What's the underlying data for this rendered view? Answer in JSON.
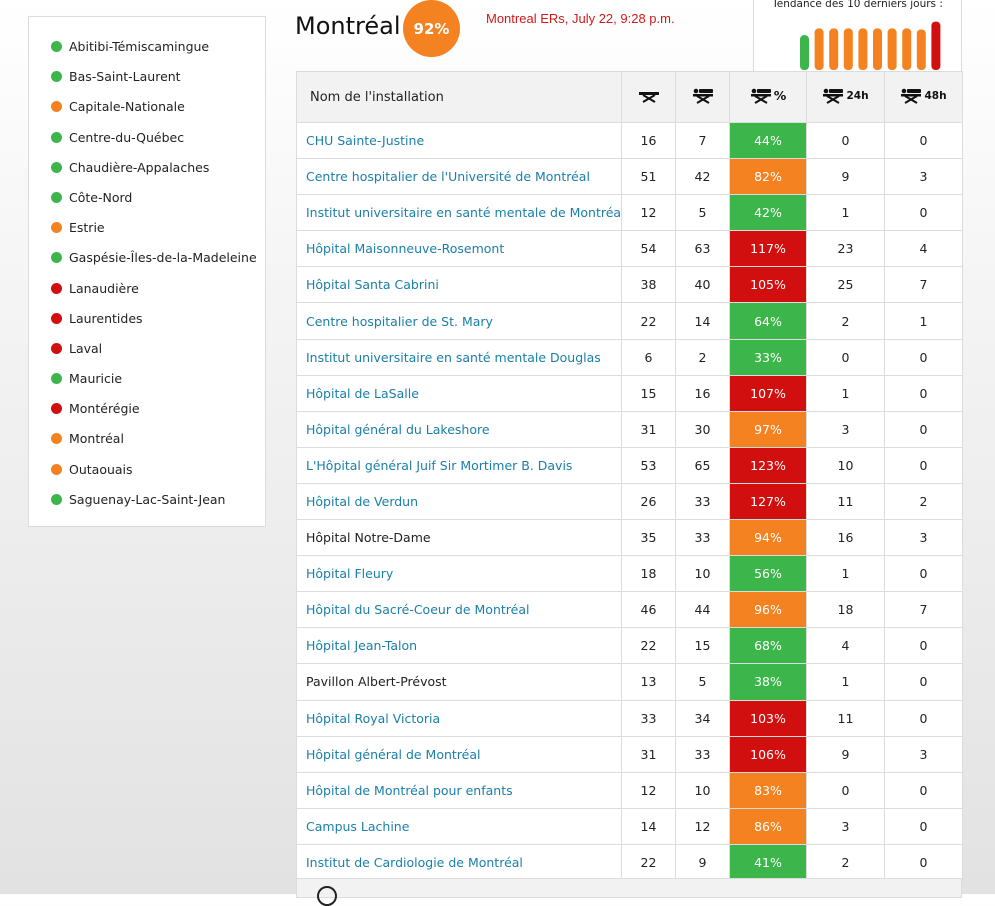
{
  "colors": {
    "green": "#3cb54a",
    "orange": "#f58220",
    "red": "#d10f0f"
  },
  "sidebar": {
    "regions": [
      {
        "label": "Abitibi-Témiscamingue",
        "status": "green"
      },
      {
        "label": "Bas-Saint-Laurent",
        "status": "green"
      },
      {
        "label": "Capitale-Nationale",
        "status": "orange"
      },
      {
        "label": "Centre-du-Québec",
        "status": "green"
      },
      {
        "label": "Chaudière-Appalaches",
        "status": "green"
      },
      {
        "label": "Côte-Nord",
        "status": "green"
      },
      {
        "label": "Estrie",
        "status": "orange"
      },
      {
        "label": "Gaspésie-Îles-de-la-Madeleine",
        "status": "green"
      },
      {
        "label": "Lanaudière",
        "status": "red"
      },
      {
        "label": "Laurentides",
        "status": "red"
      },
      {
        "label": "Laval",
        "status": "red"
      },
      {
        "label": "Mauricie",
        "status": "green"
      },
      {
        "label": "Montérégie",
        "status": "red"
      },
      {
        "label": "Montréal",
        "status": "orange"
      },
      {
        "label": "Outaouais",
        "status": "orange"
      },
      {
        "label": "Saguenay-Lac-Saint-Jean",
        "status": "green"
      }
    ]
  },
  "header": {
    "title": "Montréal",
    "score": "92%",
    "caption": "Montreal ERs, July 22, 9:28 p.m."
  },
  "trend": {
    "title": "Tendance des 10 derniers jours :",
    "bars": [
      {
        "value": 0.67,
        "status": "green"
      },
      {
        "value": 0.8,
        "status": "orange"
      },
      {
        "value": 0.8,
        "status": "orange"
      },
      {
        "value": 0.8,
        "status": "orange"
      },
      {
        "value": 0.8,
        "status": "orange"
      },
      {
        "value": 0.8,
        "status": "orange"
      },
      {
        "value": 0.8,
        "status": "orange"
      },
      {
        "value": 0.8,
        "status": "orange"
      },
      {
        "value": 0.78,
        "status": "orange"
      },
      {
        "value": 0.93,
        "status": "red"
      }
    ]
  },
  "table": {
    "headers": {
      "name": "Nom de l'installation",
      "stretchers": "",
      "occupied": "",
      "pct": "%",
      "h24": "24h",
      "h48": "48h"
    },
    "rows": [
      {
        "name": "CHU Sainte-Justine",
        "link": true,
        "c1": "16",
        "c2": "7",
        "pct": "44%",
        "status": "green",
        "h24": "0",
        "h48": "0"
      },
      {
        "name": "Centre hospitalier de l'Université de Montréal",
        "link": true,
        "c1": "51",
        "c2": "42",
        "pct": "82%",
        "status": "orange",
        "h24": "9",
        "h48": "3"
      },
      {
        "name": "Institut universitaire en santé mentale de Montréal",
        "link": true,
        "c1": "12",
        "c2": "5",
        "pct": "42%",
        "status": "green",
        "h24": "1",
        "h48": "0"
      },
      {
        "name": "Hôpital Maisonneuve-Rosemont",
        "link": true,
        "c1": "54",
        "c2": "63",
        "pct": "117%",
        "status": "red",
        "h24": "23",
        "h48": "4"
      },
      {
        "name": "Hôpital Santa Cabrini",
        "link": true,
        "c1": "38",
        "c2": "40",
        "pct": "105%",
        "status": "red",
        "h24": "25",
        "h48": "7"
      },
      {
        "name": "Centre hospitalier de St. Mary",
        "link": true,
        "c1": "22",
        "c2": "14",
        "pct": "64%",
        "status": "green",
        "h24": "2",
        "h48": "1"
      },
      {
        "name": "Institut universitaire en santé mentale Douglas",
        "link": true,
        "c1": "6",
        "c2": "2",
        "pct": "33%",
        "status": "green",
        "h24": "0",
        "h48": "0"
      },
      {
        "name": "Hôpital de LaSalle",
        "link": true,
        "c1": "15",
        "c2": "16",
        "pct": "107%",
        "status": "red",
        "h24": "1",
        "h48": "0"
      },
      {
        "name": "Hôpital général du Lakeshore",
        "link": true,
        "c1": "31",
        "c2": "30",
        "pct": "97%",
        "status": "orange",
        "h24": "3",
        "h48": "0"
      },
      {
        "name": "L'Hôpital général Juif Sir Mortimer B. Davis",
        "link": true,
        "c1": "53",
        "c2": "65",
        "pct": "123%",
        "status": "red",
        "h24": "10",
        "h48": "0"
      },
      {
        "name": "Hôpital de Verdun",
        "link": true,
        "c1": "26",
        "c2": "33",
        "pct": "127%",
        "status": "red",
        "h24": "11",
        "h48": "2"
      },
      {
        "name": "Hôpital Notre-Dame",
        "link": false,
        "c1": "35",
        "c2": "33",
        "pct": "94%",
        "status": "orange",
        "h24": "16",
        "h48": "3"
      },
      {
        "name": "Hôpital Fleury",
        "link": true,
        "c1": "18",
        "c2": "10",
        "pct": "56%",
        "status": "green",
        "h24": "1",
        "h48": "0"
      },
      {
        "name": "Hôpital du Sacré-Coeur de Montréal",
        "link": true,
        "c1": "46",
        "c2": "44",
        "pct": "96%",
        "status": "orange",
        "h24": "18",
        "h48": "7"
      },
      {
        "name": "Hôpital Jean-Talon",
        "link": true,
        "c1": "22",
        "c2": "15",
        "pct": "68%",
        "status": "green",
        "h24": "4",
        "h48": "0"
      },
      {
        "name": "Pavillon Albert-Prévost",
        "link": false,
        "c1": "13",
        "c2": "5",
        "pct": "38%",
        "status": "green",
        "h24": "1",
        "h48": "0"
      },
      {
        "name": "Hôpital Royal Victoria",
        "link": true,
        "c1": "33",
        "c2": "34",
        "pct": "103%",
        "status": "red",
        "h24": "11",
        "h48": "0"
      },
      {
        "name": "Hôpital général de Montréal",
        "link": true,
        "c1": "31",
        "c2": "33",
        "pct": "106%",
        "status": "red",
        "h24": "9",
        "h48": "3"
      },
      {
        "name": "Hôpital de Montréal pour enfants",
        "link": true,
        "c1": "12",
        "c2": "10",
        "pct": "83%",
        "status": "orange",
        "h24": "0",
        "h48": "0"
      },
      {
        "name": "Campus Lachine",
        "link": true,
        "c1": "14",
        "c2": "12",
        "pct": "86%",
        "status": "orange",
        "h24": "3",
        "h48": "0"
      },
      {
        "name": "Institut de Cardiologie de Montréal",
        "link": true,
        "c1": "22",
        "c2": "9",
        "pct": "41%",
        "status": "green",
        "h24": "2",
        "h48": "0"
      }
    ]
  },
  "icons": {
    "stretcher": "stretcher-icon",
    "occupied": "occupied-stretcher-icon",
    "footer": "clock-icon"
  }
}
